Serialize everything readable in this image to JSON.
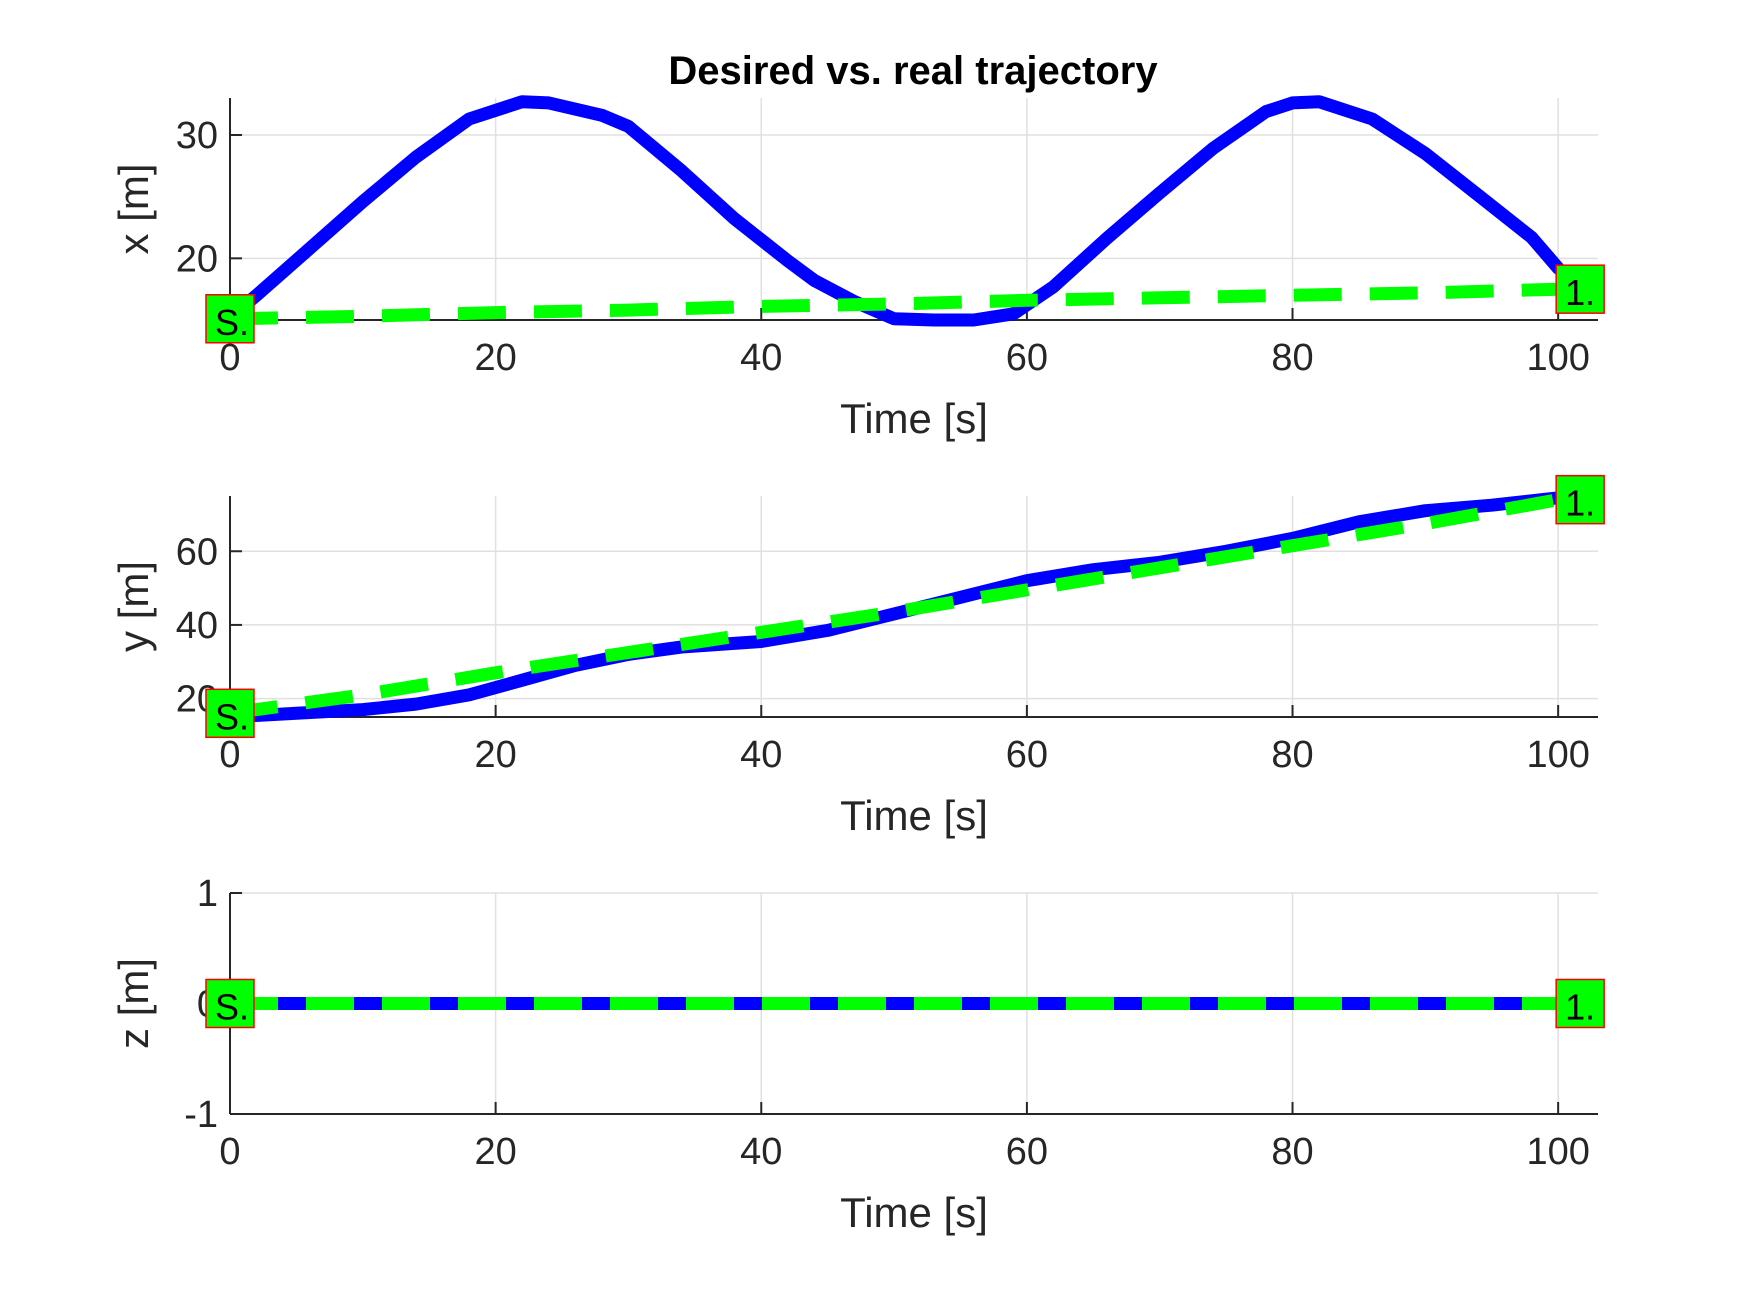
{
  "title": "Desired vs. real trajectory",
  "colors": {
    "real": "#0000ff",
    "desired": "#00ff00",
    "marker_fill": "#00ff00",
    "marker_edge": "#ff0000",
    "grid": "#e0e0e0",
    "axis": "#262626"
  },
  "chart_data": [
    {
      "type": "line",
      "ylabel": "x [m]",
      "xlabel": "Time [s]",
      "xlim": [
        0,
        103
      ],
      "ylim": [
        15,
        33
      ],
      "xticks": [
        "0",
        "20",
        "40",
        "60",
        "80",
        "100"
      ],
      "yticks": [
        "20",
        "30"
      ],
      "grid": true,
      "start_marker": "S.",
      "end_marker": "1.",
      "series": [
        {
          "style": "solid",
          "x": [
            0,
            2,
            6,
            10,
            14,
            18,
            22,
            24,
            28,
            30,
            34,
            38,
            42,
            44,
            47,
            50,
            53,
            56,
            59,
            62,
            66,
            70,
            74,
            78,
            80,
            82,
            86,
            90,
            94,
            98,
            100
          ],
          "y": [
            15.2,
            17,
            20.8,
            24.6,
            28.2,
            31.3,
            32.7,
            32.6,
            31.6,
            30.7,
            27.1,
            23.2,
            19.8,
            18.2,
            16.5,
            15.1,
            15,
            15,
            15.5,
            17.7,
            21.6,
            25.3,
            28.9,
            31.9,
            32.6,
            32.7,
            31.3,
            28.5,
            25.1,
            21.7,
            19.2
          ]
        },
        {
          "style": "dashed",
          "x": [
            0,
            10,
            20,
            30,
            40,
            50,
            60,
            70,
            80,
            90,
            100
          ],
          "y": [
            15.1,
            15.3,
            15.6,
            15.8,
            16.1,
            16.3,
            16.6,
            16.8,
            17.0,
            17.2,
            17.5
          ]
        }
      ]
    },
    {
      "type": "line",
      "ylabel": "y [m]",
      "xlabel": "Time [s]",
      "xlim": [
        0,
        103
      ],
      "ylim": [
        15,
        75
      ],
      "xticks": [
        "0",
        "20",
        "40",
        "60",
        "80",
        "100"
      ],
      "yticks": [
        "20",
        "40",
        "60"
      ],
      "grid": true,
      "start_marker": "S.",
      "end_marker": "1.",
      "series": [
        {
          "style": "solid",
          "x": [
            0,
            5,
            10,
            14,
            18,
            22,
            26,
            30,
            34,
            40,
            45,
            50,
            55,
            60,
            65,
            70,
            75,
            80,
            85,
            90,
            95,
            100
          ],
          "y": [
            15,
            16,
            17,
            18.5,
            21,
            25,
            29,
            32,
            34,
            35.5,
            38.5,
            43,
            47.5,
            52,
            55,
            57,
            60,
            63.5,
            68,
            71,
            72.5,
            74.5
          ]
        },
        {
          "style": "dashed",
          "x": [
            0,
            10,
            20,
            30,
            40,
            50,
            60,
            70,
            80,
            90,
            100
          ],
          "y": [
            16,
            21,
            27,
            32.5,
            38,
            43.5,
            49.5,
            55.5,
            61.5,
            67.5,
            74
          ]
        }
      ]
    },
    {
      "type": "line",
      "ylabel": "z [m]",
      "xlabel": "Time [s]",
      "xlim": [
        0,
        103
      ],
      "ylim": [
        -1,
        1
      ],
      "xticks": [
        "0",
        "20",
        "40",
        "60",
        "80",
        "100"
      ],
      "yticks": [
        "-1",
        "0",
        "1"
      ],
      "grid": true,
      "start_marker": "S.",
      "end_marker": "1.",
      "series": [
        {
          "style": "solid",
          "x": [
            0,
            100
          ],
          "y": [
            0,
            0
          ]
        },
        {
          "style": "dashed",
          "x": [
            0,
            100
          ],
          "y": [
            0,
            0
          ]
        }
      ]
    }
  ]
}
